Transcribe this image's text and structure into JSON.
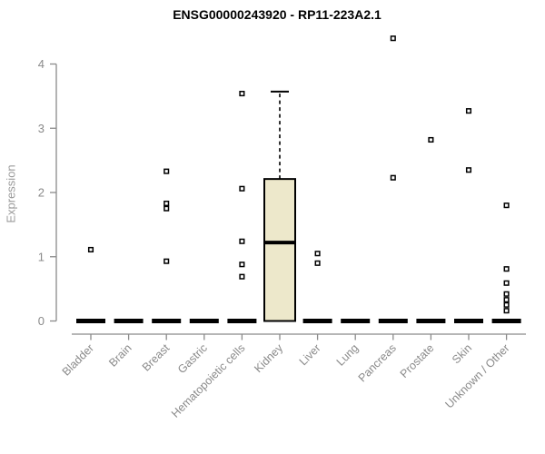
{
  "chart_data": {
    "type": "boxplot",
    "title": "ENSG00000243920 - RP11-223A2.1",
    "ylabel": "Expression",
    "yticks": [
      0,
      1,
      2,
      3,
      4
    ],
    "ylim": [
      0,
      4
    ],
    "grid": false,
    "categories": [
      "Bladder",
      "Brain",
      "Breast",
      "Gastric",
      "Hematopoietic cells",
      "Kidney",
      "Liver",
      "Lung",
      "Pancreas",
      "Prostate",
      "Skin",
      "Unknown / Other"
    ],
    "boxes": [
      {
        "category": "Bladder",
        "q1": 0,
        "median": 0,
        "q3": 0,
        "whisker_low": 0,
        "whisker_high": 0,
        "outliers": [
          1.11
        ]
      },
      {
        "category": "Brain",
        "q1": 0,
        "median": 0,
        "q3": 0,
        "whisker_low": 0,
        "whisker_high": 0,
        "outliers": []
      },
      {
        "category": "Breast",
        "q1": 0,
        "median": 0,
        "q3": 0,
        "whisker_low": 0,
        "whisker_high": 0,
        "outliers": [
          2.33,
          1.83,
          1.75,
          0.93
        ]
      },
      {
        "category": "Gastric",
        "q1": 0,
        "median": 0,
        "q3": 0,
        "whisker_low": 0,
        "whisker_high": 0,
        "outliers": []
      },
      {
        "category": "Hematopoietic cells",
        "q1": 0,
        "median": 0,
        "q3": 0,
        "whisker_low": 0,
        "whisker_high": 0,
        "outliers": [
          3.54,
          2.06,
          1.24,
          0.88,
          0.69
        ]
      },
      {
        "category": "Kidney",
        "q1": 0,
        "median": 1.22,
        "q3": 2.21,
        "whisker_low": 0,
        "whisker_high": 3.57,
        "outliers": []
      },
      {
        "category": "Liver",
        "q1": 0,
        "median": 0,
        "q3": 0,
        "whisker_low": 0,
        "whisker_high": 0,
        "outliers": [
          1.05,
          0.9
        ]
      },
      {
        "category": "Lung",
        "q1": 0,
        "median": 0,
        "q3": 0,
        "whisker_low": 0,
        "whisker_high": 0,
        "outliers": []
      },
      {
        "category": "Pancreas",
        "q1": 0,
        "median": 0,
        "q3": 0,
        "whisker_low": 0,
        "whisker_high": 0,
        "outliers": [
          4.4,
          2.23
        ]
      },
      {
        "category": "Prostate",
        "q1": 0,
        "median": 0,
        "q3": 0,
        "whisker_low": 0,
        "whisker_high": 0,
        "outliers": [
          2.82
        ]
      },
      {
        "category": "Skin",
        "q1": 0,
        "median": 0,
        "q3": 0,
        "whisker_low": 0,
        "whisker_high": 0,
        "outliers": [
          3.27,
          2.35
        ]
      },
      {
        "category": "Unknown / Other",
        "q1": 0,
        "median": 0,
        "q3": 0,
        "whisker_low": 0,
        "whisker_high": 0,
        "outliers": [
          1.8,
          0.81,
          0.59,
          0.42,
          0.33,
          0.25,
          0.16
        ]
      }
    ],
    "colors": {
      "box_fill": "#EDE8CB",
      "box_line": "#000000",
      "axis": "#8a8a8a",
      "tick_label": "#8a8a8a",
      "title": "#000000"
    },
    "legend": null
  }
}
